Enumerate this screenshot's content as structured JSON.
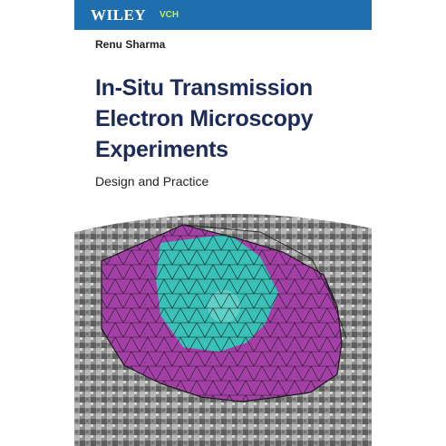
{
  "cover": {
    "publisher": "WILEY",
    "imprint": "VCH",
    "author": "Renu Sharma",
    "title_lines": [
      "In-Situ Transmission",
      "Electron Microscopy",
      "Experiments"
    ],
    "subtitle": "Design and Practice"
  },
  "colors": {
    "header_blue": "#1f6fae",
    "title_navy": "#1c2b57",
    "magenta": "#a43fa8",
    "cyan": "#39c0b8"
  }
}
